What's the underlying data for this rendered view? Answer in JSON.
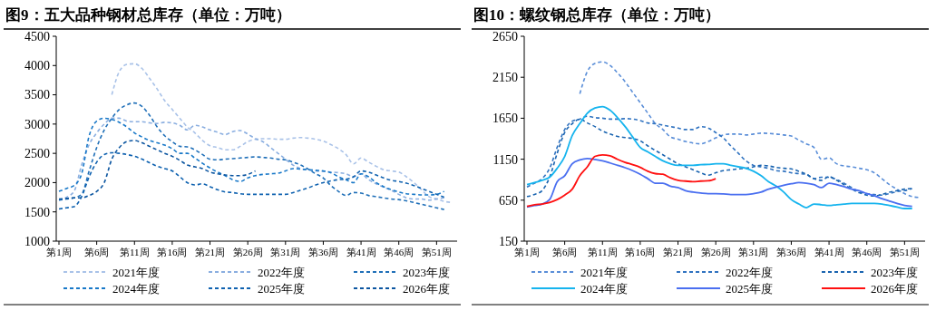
{
  "chart_data": [
    {
      "type": "line",
      "title": "图9：五大品种钢材总库存（单位：万吨）",
      "categories": [
        "第1周",
        null,
        null,
        null,
        null,
        "第6周",
        null,
        null,
        null,
        null,
        "第11周",
        null,
        null,
        null,
        null,
        "第16周",
        null,
        null,
        null,
        null,
        "第21周",
        null,
        null,
        null,
        null,
        "第26周",
        null,
        null,
        null,
        null,
        "第31周",
        null,
        null,
        null,
        null,
        "第36周",
        null,
        null,
        null,
        null,
        "第41周",
        null,
        null,
        null,
        null,
        "第46周",
        null,
        null,
        null,
        null,
        "第51周",
        null,
        null
      ],
      "ylim": [
        1000,
        4500
      ],
      "yticks": [
        1000,
        1500,
        2000,
        2500,
        3000,
        3500,
        4000,
        4500
      ],
      "legend": "bottom",
      "marker": "none",
      "line_style": "dashed",
      "series": [
        {
          "name": "2021年度",
          "color": "#a9c2e8",
          "values": [
            null,
            null,
            null,
            null,
            null,
            null,
            null,
            3500,
            3900,
            4020,
            4030,
            3950,
            3780,
            3600,
            3400,
            3250,
            3100,
            2950,
            2850,
            2720,
            2630,
            2600,
            2560,
            2560,
            2620,
            2700,
            2740,
            2750,
            2750,
            2740,
            2740,
            2760,
            2770,
            2760,
            2740,
            2710,
            2650,
            2580,
            2480,
            2320,
            2420,
            2350,
            2280,
            2220,
            2200,
            2180,
            2100,
            2000,
            1880,
            1760,
            1720,
            1680,
            1660
          ]
        },
        {
          "name": "2022年度",
          "color": "#8aaee0",
          "values": [
            1700,
            1750,
            1850,
            2300,
            2650,
            2850,
            3000,
            3100,
            3100,
            3050,
            3040,
            3040,
            3020,
            3010,
            3030,
            3020,
            2980,
            2900,
            2980,
            2950,
            2900,
            2860,
            2820,
            2870,
            2890,
            2830,
            2750,
            2700,
            2600,
            2500,
            2400,
            2300,
            2240,
            2220,
            2200,
            2190,
            2180,
            2170,
            2150,
            2100,
            2150,
            2050,
            1980,
            1920,
            1870,
            1800,
            1740,
            1720,
            1720,
            1700,
            1720,
            1740,
            null
          ]
        },
        {
          "name": "2023年度",
          "color": "#1f6fb8",
          "values": [
            1700,
            1720,
            1740,
            1800,
            2200,
            2600,
            2900,
            3100,
            3250,
            3330,
            3360,
            3300,
            3150,
            2950,
            2800,
            2700,
            2620,
            2610,
            2560,
            2480,
            2400,
            2390,
            2400,
            2410,
            2420,
            2430,
            2440,
            2430,
            2420,
            2400,
            2390,
            2350,
            2300,
            2230,
            2150,
            2080,
            1950,
            1850,
            1780,
            1830,
            1820,
            1780,
            1760,
            1740,
            1720,
            1710,
            1690,
            1660,
            1630,
            1600,
            1570,
            1540,
            null
          ]
        },
        {
          "name": "2024年度",
          "color": "#1878c8",
          "values": [
            1850,
            1900,
            1950,
            2150,
            2800,
            3050,
            3100,
            3080,
            3030,
            2950,
            2850,
            2780,
            2720,
            2680,
            2640,
            2580,
            2500,
            2500,
            2420,
            2330,
            2250,
            2180,
            2120,
            2050,
            2020,
            2080,
            2120,
            2140,
            2150,
            2160,
            2200,
            2240,
            2230,
            2220,
            2210,
            2200,
            2170,
            2100,
            2050,
            2000,
            2150,
            2100,
            2000,
            1930,
            1880,
            1840,
            1810,
            1800,
            1790,
            1790,
            1800,
            1850,
            null
          ]
        },
        {
          "name": "2025年度",
          "color": "#0f62b0",
          "values": [
            1550,
            1570,
            1590,
            1760,
            2100,
            2350,
            2480,
            2510,
            2500,
            2480,
            2450,
            2400,
            2340,
            2280,
            2240,
            2200,
            2100,
            2000,
            1960,
            1980,
            1930,
            1880,
            1840,
            1830,
            1810,
            1800,
            1800,
            1800,
            1800,
            1800,
            1800,
            1830,
            1870,
            1910,
            1960,
            2000,
            2030,
            2050,
            2060,
            2100,
            2200,
            2180,
            2130,
            2080,
            2040,
            2020,
            1990,
            1950,
            1900,
            1850,
            1800,
            1750,
            null
          ]
        },
        {
          "name": "2026年度",
          "color": "#0b55a0",
          "values": [
            1720,
            1730,
            1740,
            1740,
            1780,
            1850,
            2000,
            2400,
            2600,
            2700,
            2720,
            2680,
            2620,
            2560,
            2500,
            2450,
            2380,
            2300,
            2270,
            2240,
            2180,
            2150,
            2130,
            2120,
            2120,
            2140,
            2200,
            null,
            null,
            null,
            null,
            null,
            null,
            null,
            null,
            null,
            null,
            null,
            null,
            null,
            null,
            null,
            null,
            null,
            null,
            null,
            null,
            null,
            null,
            null,
            null,
            null,
            null
          ]
        }
      ]
    },
    {
      "type": "line",
      "title": "图10：螺纹钢总库存（单位：万吨）",
      "categories": [
        "第1周",
        null,
        null,
        null,
        null,
        "第6周",
        null,
        null,
        null,
        null,
        "第11周",
        null,
        null,
        null,
        null,
        "第16周",
        null,
        null,
        null,
        null,
        "第21周",
        null,
        null,
        null,
        null,
        "第26周",
        null,
        null,
        null,
        null,
        "第31周",
        null,
        null,
        null,
        null,
        "第36周",
        null,
        null,
        null,
        null,
        "第41周",
        null,
        null,
        null,
        null,
        "第46周",
        null,
        null,
        null,
        null,
        "第51周",
        null,
        null
      ],
      "ylim": [
        150,
        2650
      ],
      "yticks": [
        150,
        650,
        1150,
        1650,
        2150,
        2650
      ],
      "legend": "bottom",
      "marker": "none",
      "series": [
        {
          "name": "2021年度",
          "color": "#5a8ed8",
          "line_style": "dashed",
          "values": [
            null,
            null,
            null,
            null,
            null,
            null,
            null,
            1948,
            2221,
            2319,
            2337,
            2294,
            2203,
            2094,
            1966,
            1839,
            1712,
            1584,
            1512,
            1421,
            1395,
            1366,
            1348,
            1337,
            1366,
            1410,
            1446,
            1457,
            1457,
            1446,
            1457,
            1468,
            1464,
            1457,
            1446,
            1432,
            1384,
            1337,
            1294,
            1148,
            1166,
            1094,
            1068,
            1057,
            1039,
            1021,
            984,
            912,
            839,
            785,
            730,
            694,
            683
          ]
        },
        {
          "name": "2022年度",
          "color": "#2f72c0",
          "line_style": "dashed",
          "values": [
            810,
            857,
            912,
            1039,
            1294,
            1512,
            1614,
            1639,
            1675,
            1657,
            1650,
            1639,
            1639,
            1645,
            1639,
            1621,
            1592,
            1584,
            1566,
            1548,
            1530,
            1512,
            1512,
            1548,
            1530,
            1475,
            1410,
            1312,
            1221,
            1130,
            1075,
            1057,
            1039,
            1010,
            1003,
            984,
            974,
            966,
            912,
            930,
            930,
            901,
            857,
            803,
            755,
            730,
            719,
            712,
            730,
            755,
            766,
            792,
            null
          ]
        },
        {
          "name": "2023年度",
          "color": "#1a64b0",
          "line_style": "dashed",
          "values": [
            694,
            720,
            766,
            930,
            1221,
            1475,
            1584,
            1639,
            1592,
            1548,
            1494,
            1457,
            1428,
            1414,
            1403,
            1374,
            1312,
            1257,
            1203,
            1148,
            1094,
            1057,
            1021,
            984,
            955,
            984,
            1010,
            1021,
            1032,
            1039,
            1057,
            1075,
            1068,
            1050,
            1039,
            1032,
            1003,
            966,
            912,
            893,
            937,
            893,
            839,
            785,
            741,
            712,
            701,
            719,
            748,
            766,
            785,
            792,
            null
          ]
        },
        {
          "name": "2024年度",
          "color": "#16b4ee",
          "line_style": "solid",
          "values": [
            839,
            864,
            893,
            930,
            1039,
            1184,
            1439,
            1584,
            1712,
            1774,
            1792,
            1748,
            1657,
            1548,
            1421,
            1294,
            1239,
            1184,
            1130,
            1094,
            1075,
            1075,
            1075,
            1083,
            1086,
            1094,
            1094,
            1075,
            1057,
            1039,
            1003,
            948,
            875,
            821,
            748,
            657,
            603,
            559,
            603,
            595,
            585,
            595,
            603,
            610,
            610,
            610,
            610,
            603,
            585,
            566,
            548,
            548,
            null
          ]
        },
        {
          "name": "2025年度",
          "color": "#4a6ff0",
          "line_style": "solid",
          "values": [
            566,
            585,
            603,
            657,
            875,
            948,
            1094,
            1141,
            1159,
            1148,
            1130,
            1104,
            1075,
            1046,
            1010,
            966,
            912,
            857,
            857,
            821,
            803,
            766,
            748,
            737,
            730,
            730,
            726,
            719,
            719,
            719,
            730,
            748,
            785,
            810,
            832,
            850,
            864,
            857,
            839,
            803,
            857,
            839,
            814,
            785,
            766,
            730,
            705,
            668,
            639,
            610,
            585,
            575,
            null
          ]
        },
        {
          "name": "2026年度",
          "color": "#ff1010",
          "line_style": "solid",
          "values": [
            574,
            595,
            603,
            621,
            657,
            712,
            785,
            948,
            1057,
            1184,
            1203,
            1192,
            1148,
            1112,
            1083,
            1050,
            1003,
            974,
            966,
            923,
            893,
            883,
            875,
            883,
            886,
            912,
            null,
            null,
            null,
            null,
            null,
            null,
            null,
            null,
            null,
            null,
            null,
            null,
            null,
            null,
            null,
            null,
            null,
            null,
            null,
            null,
            null,
            null,
            null,
            null,
            null,
            null,
            null
          ]
        }
      ]
    }
  ]
}
